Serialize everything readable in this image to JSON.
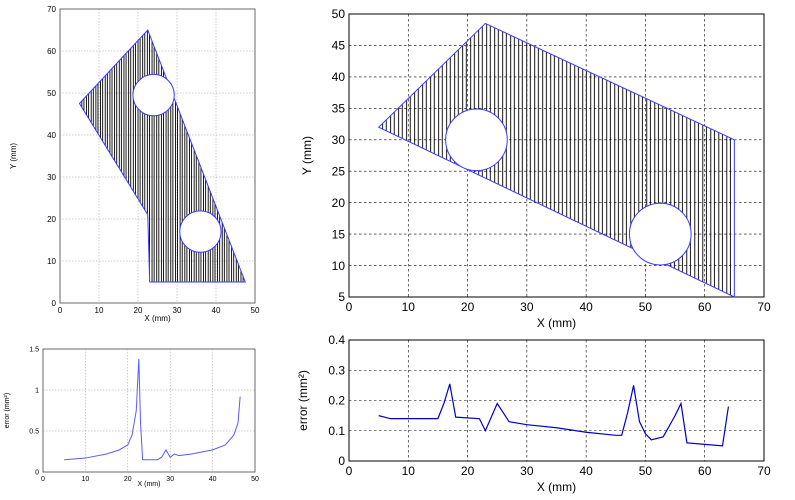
{
  "chart_data": [
    {
      "type": "line",
      "panel": "top-left",
      "xlabel": "X (mm)",
      "ylabel": "Y (mm)",
      "xlim": [
        0,
        50
      ],
      "ylim": [
        0,
        70
      ],
      "xticks": [
        "0",
        "10",
        "20",
        "30",
        "40",
        "50"
      ],
      "yticks": [
        "0",
        "10",
        "20",
        "30",
        "40",
        "50",
        "60",
        "70"
      ],
      "grid": true,
      "boundary": [
        [
          5,
          47.5
        ],
        [
          22.5,
          65
        ],
        [
          47.5,
          5
        ],
        [
          23,
          5
        ],
        [
          22.5,
          21
        ],
        [
          5,
          47.5
        ]
      ],
      "boundary_color": "#3a3aff",
      "holes": [
        {
          "cx": 24,
          "cy": 49.5,
          "r": 5.3
        },
        {
          "cx": 36,
          "cy": 17,
          "r": 5.3
        }
      ],
      "hatch_color": "#000000",
      "hatch": "vertical zigzag tool path"
    },
    {
      "type": "line",
      "panel": "top-right",
      "xlabel": "X (mm)",
      "ylabel": "Y (mm)",
      "xlim": [
        0,
        70
      ],
      "ylim": [
        5,
        50
      ],
      "xticks": [
        "0",
        "10",
        "20",
        "30",
        "40",
        "50",
        "60",
        "70"
      ],
      "yticks": [
        "5",
        "10",
        "15",
        "20",
        "25",
        "30",
        "35",
        "40",
        "45",
        "50"
      ],
      "grid": true,
      "boundary": [
        [
          5,
          32
        ],
        [
          23,
          48.5
        ],
        [
          65,
          30
        ],
        [
          65,
          5
        ],
        [
          5,
          32
        ]
      ],
      "boundary_color": "#3a3aff",
      "holes": [
        {
          "cx": 21.5,
          "cy": 30,
          "r": 5.2
        },
        {
          "cx": 52.5,
          "cy": 15,
          "r": 5.2
        }
      ],
      "hatch_color": "#000000",
      "hatch": "vertical zigzag tool path"
    },
    {
      "type": "line",
      "panel": "bottom-left",
      "xlabel": "X (mm)",
      "ylabel": "error (mm²)",
      "xlim": [
        0,
        50
      ],
      "ylim": [
        0,
        1.5
      ],
      "xticks": [
        "0",
        "10",
        "20",
        "30",
        "40",
        "50"
      ],
      "yticks": [
        "0",
        "0.5",
        "1",
        "1.5"
      ],
      "grid": true,
      "series": [
        {
          "color": "#5a5aff",
          "x": [
            5,
            10,
            15,
            18,
            20,
            21,
            22,
            22.6,
            23,
            23.5,
            25,
            27,
            28,
            29,
            30,
            31,
            32,
            35,
            40,
            43,
            45,
            46,
            46.5
          ],
          "y": [
            0.15,
            0.17,
            0.22,
            0.27,
            0.33,
            0.45,
            0.75,
            1.38,
            0.6,
            0.15,
            0.15,
            0.15,
            0.18,
            0.27,
            0.18,
            0.22,
            0.2,
            0.22,
            0.27,
            0.33,
            0.45,
            0.6,
            0.92
          ]
        }
      ]
    },
    {
      "type": "line",
      "panel": "bottom-right",
      "xlabel": "X (mm)",
      "ylabel": "error (mm²)",
      "xlim": [
        0,
        70
      ],
      "ylim": [
        0,
        0.4
      ],
      "xticks": [
        "0",
        "10",
        "20",
        "30",
        "40",
        "50",
        "60",
        "70"
      ],
      "yticks": [
        "0",
        "0.1",
        "0.2",
        "0.3",
        "0.4"
      ],
      "grid": true,
      "series": [
        {
          "color": "#0000cc",
          "x": [
            5,
            7,
            10,
            15,
            16,
            17,
            18,
            22,
            23,
            25,
            26,
            27,
            30,
            35,
            40,
            45,
            46,
            47,
            48,
            49,
            50,
            51,
            53,
            55,
            56,
            57,
            60,
            63,
            64
          ],
          "y": [
            0.15,
            0.14,
            0.14,
            0.14,
            0.19,
            0.255,
            0.145,
            0.14,
            0.1,
            0.19,
            0.16,
            0.13,
            0.12,
            0.11,
            0.095,
            0.085,
            0.085,
            0.16,
            0.25,
            0.13,
            0.09,
            0.07,
            0.08,
            0.15,
            0.19,
            0.06,
            0.055,
            0.05,
            0.18
          ]
        }
      ]
    }
  ]
}
